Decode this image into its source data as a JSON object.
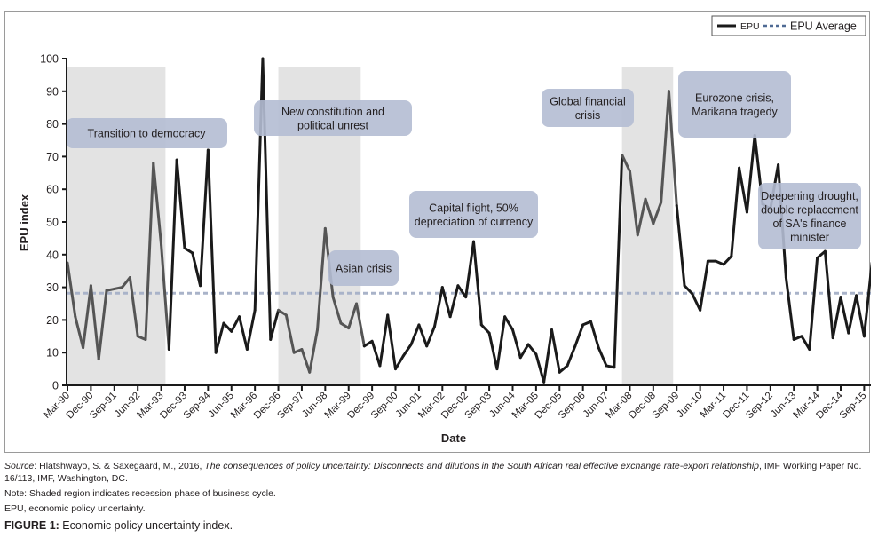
{
  "chart_data": {
    "type": "line",
    "title": "",
    "xlabel": "Date",
    "ylabel": "EPU index",
    "ylim": [
      0,
      100
    ],
    "yticks": [
      0,
      10,
      20,
      30,
      40,
      50,
      60,
      70,
      80,
      90,
      100
    ],
    "x_start": "Mar-90",
    "x_frequency": "quarterly",
    "xtick_labels": [
      "Mar-90",
      "Dec-90",
      "Sep-91",
      "Jun-92",
      "Mar-93",
      "Dec-93",
      "Sep-94",
      "Jun-95",
      "Mar-96",
      "Dec-96",
      "Sep-97",
      "Jun-98",
      "Mar-99",
      "Dec-99",
      "Sep-00",
      "Jun-01",
      "Mar-02",
      "Dec-02",
      "Sep-03",
      "Jun-04",
      "Mar-05",
      "Dec-05",
      "Sep-06",
      "Jun-07",
      "Mar-08",
      "Dec-08",
      "Sep-09",
      "Jun-10",
      "Mar-11",
      "Dec-11",
      "Sep-12",
      "Jun-13",
      "Mar-14",
      "Dec-14",
      "Sep-15"
    ],
    "grid": false,
    "legend": {
      "position": "top-right",
      "entries": [
        "EPU",
        "EPU Average"
      ]
    },
    "series": [
      {
        "name": "EPU",
        "color": "#1a1a1a",
        "values": [
          37.5,
          21,
          11.5,
          30.5,
          8,
          29,
          29.5,
          30,
          33,
          15,
          14,
          68,
          43,
          11,
          69,
          42,
          40.5,
          30.5,
          72,
          10,
          19,
          16.5,
          21,
          11,
          23,
          100,
          14,
          23,
          21.5,
          10,
          11,
          4,
          17,
          48,
          27,
          19,
          17.5,
          25,
          12,
          13.5,
          6,
          21.5,
          5,
          9,
          12.5,
          18.5,
          12,
          18,
          30,
          21,
          30.5,
          27,
          44,
          18.5,
          16,
          5,
          21,
          17,
          8.5,
          12.5,
          9.5,
          1,
          17,
          4,
          6,
          12,
          18.5,
          19.5,
          11.5,
          6,
          5.5,
          70.5,
          65.5,
          46,
          57,
          49.5,
          56,
          90,
          55,
          30.5,
          28,
          23,
          38,
          38,
          37,
          39.5,
          66.5,
          53,
          76.5,
          55.5,
          54,
          67.5,
          33,
          14,
          15,
          11,
          39,
          41,
          14.5,
          27,
          16,
          27.5,
          15,
          37.5
        ]
      },
      {
        "name": "EPU Average",
        "color": "#a9b3c9",
        "style": "dashed",
        "value": 28.2
      }
    ],
    "recession_shading": [
      {
        "start": "Mar-90",
        "end": "Jun-93"
      },
      {
        "start": "Dec-96",
        "end": "Sep-99"
      },
      {
        "start": "Dec-07",
        "end": "Sep-09"
      }
    ],
    "annotations": [
      {
        "lines": [
          "Transition to democracy"
        ]
      },
      {
        "lines": [
          "New constitution and",
          "political unrest"
        ]
      },
      {
        "lines": [
          "Asian crisis"
        ]
      },
      {
        "lines": [
          "Capital flight, 50%",
          "depreciation of currency"
        ]
      },
      {
        "lines": [
          "Global financial",
          "crisis"
        ]
      },
      {
        "lines": [
          "Eurozone crisis,",
          "Marikana tragedy"
        ]
      },
      {
        "lines": [
          "Deepening drought,",
          "double replacement",
          "of SA's finance",
          "minister"
        ]
      }
    ],
    "colors": {
      "shade": "#e3e3e3",
      "annotation_box": "#b4bcd3",
      "axis": "#1a1a1a"
    }
  },
  "caption": {
    "source_label": "Source",
    "source_authors": ": Hlatshwayo, S. & Saxegaard, M., 2016, ",
    "source_title": "The consequences of policy uncertainty: Disconnects and dilutions in the South African real effective exchange rate-export relationship",
    "source_rest": ", IMF Working Paper No. 16/113, IMF, Washington, DC.",
    "note": "Note: Shaded region indicates recession phase of business cycle.",
    "abbreviation": "EPU, economic policy uncertainty.",
    "figure_label": "FIGURE 1:",
    "figure_title": " Economic policy uncertainty index."
  }
}
